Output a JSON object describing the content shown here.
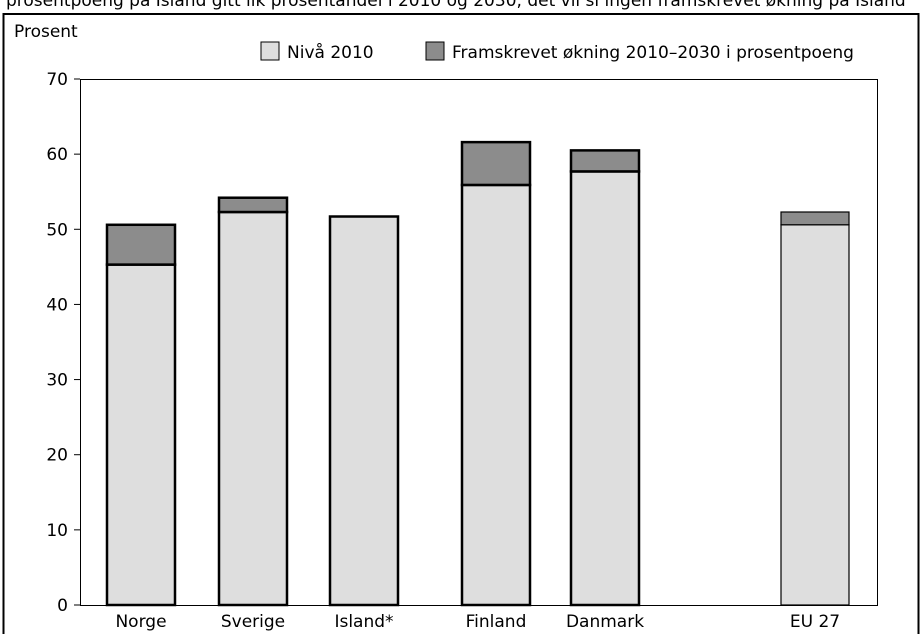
{
  "header_text": "prosentpoeng på Island gitt lik prosentandel i 2010 og 2030, det vil si ingen framskrevet økning på Island",
  "chart_data": {
    "type": "bar",
    "stacked": true,
    "ylabel": "Prosent",
    "ylim": [
      0,
      70
    ],
    "yticks": [
      0,
      10,
      20,
      30,
      40,
      50,
      60,
      70
    ],
    "grid": false,
    "legend_position": "top",
    "categories": [
      "Norge",
      "Sverige",
      "Island*",
      "Finland",
      "Danmark",
      "EU 27"
    ],
    "series": [
      {
        "name": "Nivå 2010",
        "color": "#dedede",
        "values": [
          45.3,
          52.3,
          51.7,
          55.9,
          57.7,
          50.6
        ]
      },
      {
        "name": "Framskrevet økning 2010–2030 i prosentpoeng",
        "color": "#8c8c8c",
        "values": [
          5.3,
          1.9,
          0,
          5.7,
          2.8,
          1.7
        ]
      }
    ]
  }
}
